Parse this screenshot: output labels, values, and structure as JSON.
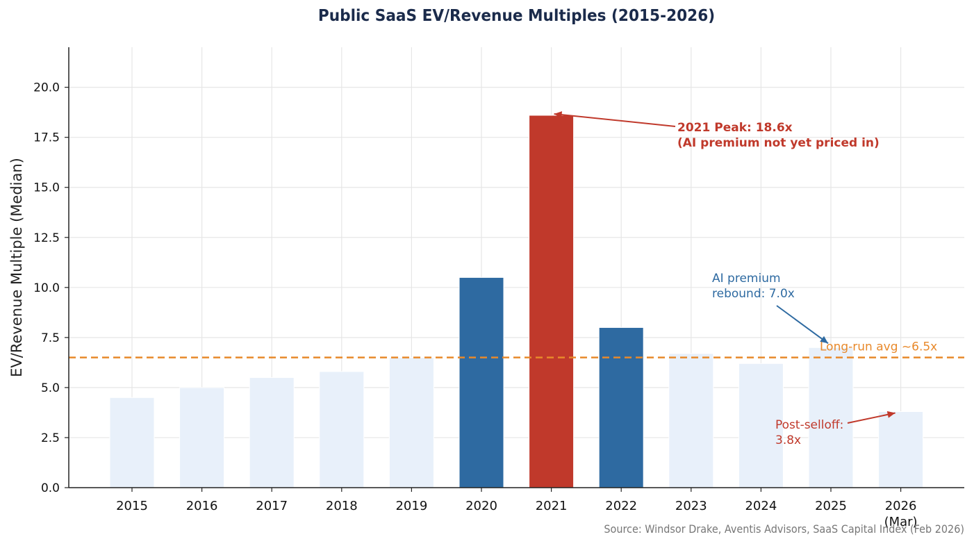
{
  "chart_data": {
    "type": "bar",
    "title": "Public SaaS EV/Revenue Multiples (2015-2026)",
    "ylabel": "EV/Revenue Multiple (Median)",
    "xlabel": "",
    "categories": [
      "2015",
      "2016",
      "2017",
      "2018",
      "2019",
      "2020",
      "2021",
      "2022",
      "2023",
      "2024",
      "2025",
      "2026\n(Mar)"
    ],
    "values": [
      4.5,
      5.0,
      5.5,
      5.8,
      6.5,
      10.5,
      18.6,
      8.0,
      6.7,
      6.2,
      7.0,
      3.8
    ],
    "bar_colors": [
      "#e8f0fa",
      "#e8f0fa",
      "#e8f0fa",
      "#e8f0fa",
      "#e8f0fa",
      "#2e6aa1",
      "#c0392b",
      "#2e6aa1",
      "#e8f0fa",
      "#e8f0fa",
      "#e8f0fa",
      "#e8f0fa"
    ],
    "ylim": [
      0,
      22
    ],
    "yticks": [
      0.0,
      2.5,
      5.0,
      7.5,
      10.0,
      12.5,
      15.0,
      17.5,
      20.0
    ],
    "grid": true,
    "reference_line": {
      "value": 6.5,
      "label": "Long-run avg ~6.5x",
      "color": "#e8892b",
      "style": "dashed"
    },
    "annotations": [
      {
        "text": "2021 Peak: 18.6x\n(AI premium not yet priced in)",
        "target_index": 6,
        "target_value": 18.6,
        "color": "#c0392b",
        "bold": true
      },
      {
        "text": "AI premium\nrebound: 7.0x",
        "target_index": 10,
        "target_value": 7.0,
        "color": "#2e6aa1",
        "bold": false
      },
      {
        "text": "Post-selloff:\n3.8x",
        "target_index": 11,
        "target_value": 3.8,
        "color": "#c0392b",
        "bold": false
      }
    ],
    "source": "Source: Windsor Drake, Aventis Advisors, SaaS Capital Index (Feb 2026)"
  }
}
